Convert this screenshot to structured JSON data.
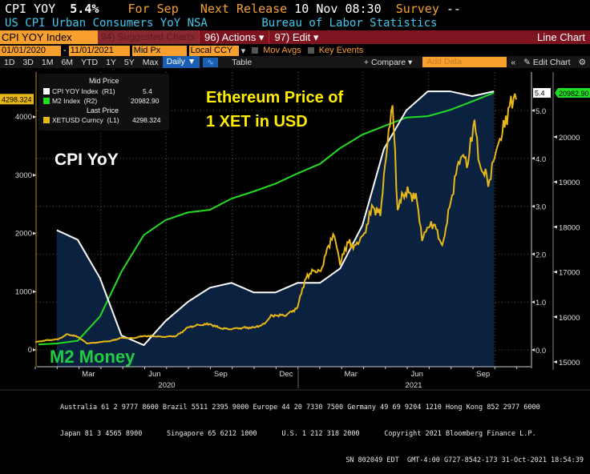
{
  "header": {
    "ticker": "CPI YOY",
    "last_value": "5.4%",
    "period": "For Sep",
    "next_release_label": "Next Release",
    "next_release": "10 Nov 08:30",
    "survey_label": "Survey",
    "survey_value": "--",
    "description": "US CPI Urban Consumers YoY NSA",
    "source": "Bureau of Labor Statistics"
  },
  "toolbar": {
    "security": "CPI YOY Index",
    "suggested": "94) Suggested Charts",
    "actions": "96) Actions ▾",
    "edit": "97) Edit ▾",
    "chart_type": "Line Chart",
    "start_date": "01/01/2020",
    "end_date": "11/01/2021",
    "price_field": "Mid Px",
    "currency": "Local CCY",
    "mov_avgs": "Mov Avgs",
    "key_events": "Key Events",
    "periods": [
      "1D",
      "3D",
      "1M",
      "6M",
      "YTD",
      "1Y",
      "5Y",
      "Max"
    ],
    "frequency": "Daily ▼",
    "table": "Table",
    "compare": "+ Compare ▾",
    "add_data_placeholder": "Add Data",
    "collapse": "«",
    "edit_chart": "✎ Edit Chart",
    "settings": "⚙"
  },
  "legend": {
    "mid_price": "Mid Price",
    "last_price": "Last Price",
    "items": [
      {
        "name": "CPI YOY Index  (R1)",
        "value": "5.4",
        "color": "#ffffff"
      },
      {
        "name": "M2 Index  (R2)",
        "value": "20982.90",
        "color": "#22dd22"
      },
      {
        "name": "XETUSD Curncy  (L1)",
        "value": "4298.324",
        "color": "#e8b818"
      }
    ]
  },
  "annotations": {
    "eth": "Ethereum Price of\n1 XET in USD",
    "cpi": "CPI YoY",
    "m2": "M2 Money"
  },
  "chart_data": {
    "type": "line",
    "x_range": [
      "2020-01-01",
      "2021-10-31"
    ],
    "x_ticks": [
      "Mar",
      "Jun",
      "Sep",
      "Dec",
      "Mar",
      "Jun",
      "Sep"
    ],
    "x_years": [
      "2020",
      "2021"
    ],
    "grid": true,
    "legend_position": "top-left",
    "axes": {
      "L1": {
        "range": [
          0,
          5000
        ],
        "ticks": [
          "0",
          "1000",
          "2000",
          "3000",
          "4000"
        ],
        "last_label": "4298.324",
        "color": "#e8b818"
      },
      "R1": {
        "range": [
          -0.3,
          5.6
        ],
        "ticks": [
          "0.0",
          "1.0",
          "2.0",
          "3.0",
          "4.0",
          "5.0"
        ],
        "last_label": "5.4",
        "color": "#ffffff"
      },
      "R2": {
        "range": [
          15000,
          21500
        ],
        "ticks": [
          "15000",
          "16000",
          "17000",
          "18000",
          "19000",
          "20000"
        ],
        "last_label": "20982.90",
        "color": "#22dd22"
      }
    },
    "series": [
      {
        "name": "CPI YOY Index",
        "axis": "R1",
        "color": "#ffffff",
        "fill": "#0a2240",
        "x": [
          "2020-01",
          "2020-02",
          "2020-03",
          "2020-04",
          "2020-05",
          "2020-06",
          "2020-07",
          "2020-08",
          "2020-09",
          "2020-10",
          "2020-11",
          "2020-12",
          "2021-01",
          "2021-02",
          "2021-03",
          "2021-04",
          "2021-05",
          "2021-06",
          "2021-07",
          "2021-08",
          "2021-09"
        ],
        "values": [
          2.5,
          2.3,
          1.5,
          0.3,
          0.1,
          0.6,
          1.0,
          1.3,
          1.4,
          1.2,
          1.2,
          1.4,
          1.4,
          1.7,
          2.6,
          4.2,
          5.0,
          5.4,
          5.4,
          5.3,
          5.4
        ]
      },
      {
        "name": "M2 Index",
        "axis": "R2",
        "color": "#22dd22",
        "x": [
          "2020-01",
          "2020-02",
          "2020-03",
          "2020-04",
          "2020-05",
          "2020-06",
          "2020-07",
          "2020-08",
          "2020-09",
          "2020-10",
          "2020-11",
          "2020-12",
          "2021-01",
          "2021-02",
          "2021-03",
          "2021-04",
          "2021-05",
          "2021-06",
          "2021-07",
          "2021-08",
          "2021-09"
        ],
        "values": [
          15410,
          15470,
          16010,
          17010,
          17820,
          18150,
          18320,
          18380,
          18630,
          18790,
          18960,
          19190,
          19400,
          19750,
          20050,
          20240,
          20430,
          20460,
          20600,
          20790,
          20982.9
        ]
      },
      {
        "name": "XETUSD Curncy",
        "axis": "L1",
        "color": "#e8b818",
        "x": [
          "2020-01-01",
          "2020-01-15",
          "2020-02-01",
          "2020-02-15",
          "2020-03-01",
          "2020-03-13",
          "2020-04-01",
          "2020-04-15",
          "2020-05-01",
          "2020-05-15",
          "2020-06-01",
          "2020-06-15",
          "2020-07-01",
          "2020-07-15",
          "2020-08-01",
          "2020-08-15",
          "2020-09-01",
          "2020-09-15",
          "2020-10-01",
          "2020-10-15",
          "2020-11-01",
          "2020-11-15",
          "2020-11-24",
          "2020-12-01",
          "2020-12-15",
          "2020-12-31",
          "2021-01-10",
          "2021-01-20",
          "2021-02-01",
          "2021-02-10",
          "2021-02-20",
          "2021-02-28",
          "2021-03-10",
          "2021-03-20",
          "2021-04-01",
          "2021-04-15",
          "2021-04-25",
          "2021-05-03",
          "2021-05-12",
          "2021-05-19",
          "2021-05-25",
          "2021-06-05",
          "2021-06-15",
          "2021-06-22",
          "2021-07-01",
          "2021-07-10",
          "2021-07-20",
          "2021-08-01",
          "2021-08-10",
          "2021-08-15",
          "2021-08-25",
          "2021-09-03",
          "2021-09-10",
          "2021-09-20",
          "2021-09-22",
          "2021-10-01",
          "2021-10-10",
          "2021-10-20",
          "2021-10-29",
          "2021-10-31"
        ],
        "values": [
          130,
          165,
          180,
          270,
          220,
          110,
          135,
          155,
          210,
          200,
          240,
          230,
          225,
          240,
          390,
          430,
          440,
          365,
          360,
          380,
          385,
          450,
          600,
          590,
          590,
          735,
          1200,
          1380,
          1350,
          1750,
          1950,
          1450,
          1850,
          1800,
          1970,
          2450,
          2300,
          3300,
          4200,
          2400,
          2700,
          2700,
          2550,
          1870,
          2100,
          2150,
          1800,
          2550,
          3150,
          3300,
          3200,
          3950,
          3200,
          3000,
          2800,
          3300,
          3600,
          4150,
          4400,
          4298.324
        ]
      }
    ]
  },
  "footer": {
    "line1": "Australia 61 2 9777 8600 Brazil 5511 2395 9000 Europe 44 20 7330 7500 Germany 49 69 9204 1210 Hong Kong 852 2977 6000",
    "line2": "Japan 81 3 4565 8900      Singapore 65 6212 1000      U.S. 1 212 318 2000      Copyright 2021 Bloomberg Finance L.P.",
    "line3": "SN 802049 EDT  GMT-4:00 G727-8542-173 31-Oct-2021 18:54:39"
  }
}
